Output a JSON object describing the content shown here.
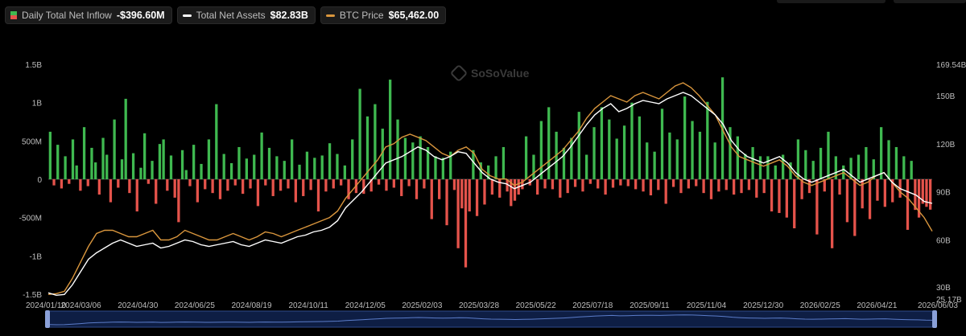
{
  "legend": [
    {
      "label": "Daily Total Net Inflow",
      "value": "-$396.60M",
      "kind": "bar",
      "color_pos": "#3fb950",
      "color_neg": "#e5534b"
    },
    {
      "label": "Total Net Assets",
      "value": "$82.83B",
      "kind": "line",
      "color": "#ffffff"
    },
    {
      "label": "BTC Price",
      "value": "$65,462.00",
      "kind": "line",
      "color": "#d9963d"
    }
  ],
  "watermark": "SoSoValue",
  "chart_data": {
    "type": "bar",
    "x_ticks": [
      "2024/01/10",
      "2024/03/06",
      "2024/04/30",
      "2024/06/25",
      "2024/08/19",
      "2024/10/11",
      "2024/12/05",
      "2025/02/03",
      "2025/03/28",
      "2025/05/22",
      "2025/07/18",
      "2025/09/11",
      "2025/11/04",
      "2025/12/30",
      "2026/02/25",
      "2026/04/21",
      "2026/06/03"
    ],
    "y_left_ticks": [
      "1.5B",
      "1B",
      "500M",
      "0",
      "-500M",
      "-1B",
      "-1.5B"
    ],
    "y_left_range": [
      -1500,
      1500
    ],
    "y_left_unit": "M USD",
    "y_right_ticks": [
      "169.54B",
      "150B",
      "120B",
      "90B",
      "60B",
      "30B",
      "25.17B"
    ],
    "y_right_range": [
      25.17,
      169.54
    ],
    "y_right_unit": "B USD",
    "series": [
      {
        "name": "Daily Total Net Inflow",
        "axis": "left",
        "values": [
          620,
          -80,
          450,
          -120,
          300,
          -60,
          520,
          180,
          -150,
          680,
          -90,
          410,
          220,
          -200,
          540,
          320,
          -300,
          780,
          -110,
          260,
          1050,
          -180,
          340,
          -420,
          150,
          600,
          -60,
          240,
          -320,
          460,
          520,
          -150,
          310,
          -240,
          -560,
          380,
          120,
          -90,
          450,
          -300,
          200,
          -130,
          520,
          -180,
          980,
          -260,
          330,
          -150,
          210,
          -80,
          420,
          -190,
          270,
          -120,
          320,
          -350,
          610,
          -80,
          410,
          -220,
          300,
          -150,
          240,
          -120,
          520,
          -300,
          190,
          -220,
          360,
          -140,
          280,
          -420,
          310,
          -160,
          470,
          -120,
          330,
          -80,
          180,
          -260,
          520,
          -180,
          1180,
          -190,
          820,
          -160,
          980,
          -70,
          660,
          -150,
          1300,
          -110,
          780,
          -220,
          540,
          -90,
          480,
          -260,
          560,
          -120,
          420,
          -520,
          300,
          -260,
          280,
          -600,
          360,
          -140,
          -900,
          -380,
          -1150,
          -420,
          380,
          -480,
          220,
          -330,
          180,
          -200,
          300,
          -240,
          420,
          -160,
          -350,
          -280,
          -200,
          -130,
          560,
          -80,
          320,
          -200,
          760,
          -120,
          940,
          -130,
          620,
          -240,
          410,
          -180,
          540,
          -100,
          880,
          -160,
          320,
          -60,
          680,
          -120,
          940,
          -200,
          780,
          -110,
          530,
          -80,
          700,
          -90,
          1000,
          -130,
          820,
          -160,
          480,
          -210,
          360,
          -140,
          920,
          -320,
          610,
          -100,
          520,
          -180,
          1080,
          -120,
          760,
          -90,
          620,
          -180,
          1010,
          -260,
          480,
          -160,
          1330,
          -140,
          680,
          -200,
          560,
          -180,
          330,
          -140,
          420,
          -240,
          300,
          -180,
          300,
          -420,
          180,
          -440,
          320,
          -500,
          220,
          -640,
          520,
          -260,
          380,
          -180,
          240,
          -720,
          410,
          -160,
          620,
          -900,
          300,
          -200,
          180,
          -560,
          280,
          -740,
          320,
          -380,
          420,
          -520,
          260,
          -280,
          680,
          -360,
          510,
          -300,
          420,
          -240,
          300,
          -660,
          240,
          -400,
          -500,
          -320,
          -360,
          -396.6
        ],
        "colors": {
          "positive": "#3fb950",
          "negative": "#e5534b"
        }
      },
      {
        "name": "Total Net Assets",
        "axis": "right",
        "values": [
          27,
          25.5,
          26,
          32,
          40,
          48,
          52,
          55,
          58,
          60,
          58,
          56,
          57,
          58,
          55,
          56,
          58,
          60,
          59,
          57,
          56,
          57,
          58,
          59,
          57,
          56,
          58,
          60,
          59,
          58,
          60,
          62,
          63,
          65,
          66,
          68,
          72,
          80,
          85,
          90,
          96,
          102,
          108,
          110,
          112,
          115,
          118,
          116,
          112,
          110,
          112,
          115,
          114,
          108,
          102,
          98,
          96,
          95,
          92,
          94,
          96,
          100,
          104,
          108,
          112,
          118,
          125,
          132,
          138,
          142,
          145,
          140,
          142,
          145,
          147,
          146,
          145,
          148,
          150,
          152,
          150,
          146,
          142,
          138,
          132,
          122,
          116,
          112,
          110,
          108,
          110,
          112,
          108,
          102,
          98,
          96,
          98,
          100,
          102,
          104,
          100,
          96,
          98,
          100,
          102,
          96,
          92,
          90,
          88,
          84,
          82.83
        ],
        "color": "#ffffff"
      },
      {
        "name": "BTC Price",
        "axis": "right",
        "note": "plotted on same scale",
        "values": [
          26,
          26.5,
          28,
          36,
          46,
          56,
          64,
          66,
          66,
          64,
          62,
          62,
          64,
          66,
          60,
          60,
          62,
          66,
          64,
          62,
          60,
          60,
          62,
          64,
          62,
          60,
          62,
          65,
          64,
          62,
          64,
          66,
          68,
          70,
          72,
          74,
          78,
          86,
          92,
          98,
          104,
          110,
          118,
          120,
          124,
          126,
          124,
          122,
          118,
          114,
          112,
          116,
          118,
          114,
          104,
          100,
          98,
          98,
          94,
          96,
          100,
          104,
          108,
          112,
          116,
          122,
          128,
          136,
          142,
          146,
          150,
          148,
          146,
          150,
          152,
          150,
          148,
          152,
          156,
          158,
          155,
          150,
          144,
          138,
          128,
          118,
          112,
          110,
          108,
          106,
          108,
          110,
          106,
          100,
          96,
          94,
          96,
          98,
          100,
          102,
          98,
          94,
          96,
          100,
          102,
          96,
          90,
          86,
          80,
          74,
          65.46
        ],
        "color": "#d9963d"
      }
    ],
    "legend_position": "top-left",
    "grid": false
  }
}
